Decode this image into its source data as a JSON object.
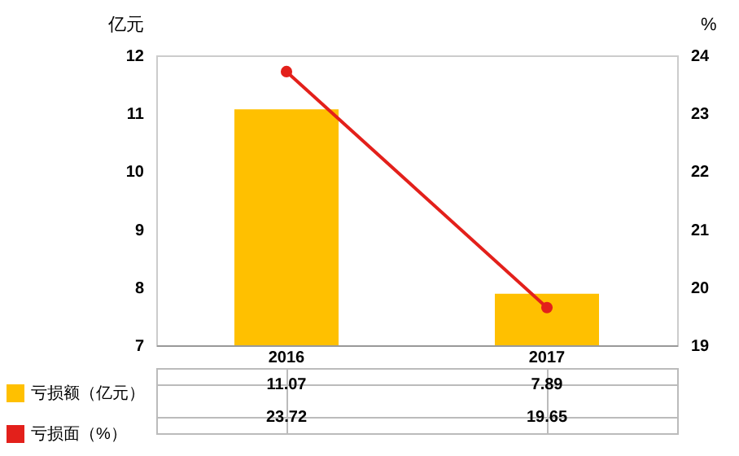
{
  "chart_data": {
    "type": "bar",
    "categories": [
      "2016",
      "2017"
    ],
    "ylabel": "亿元",
    "y2label": "%",
    "series": [
      {
        "name": "亏损额（亿元）",
        "color": "#ffc000",
        "values": [
          11.07,
          7.89
        ]
      },
      {
        "name": "亏损面（%）",
        "type": "line",
        "axis": "y2",
        "color": "#e3201b",
        "marker": "circle",
        "values": [
          23.72,
          19.65
        ]
      }
    ],
    "ylim": [
      7,
      12
    ],
    "yticks": [
      7,
      8,
      9,
      10,
      11,
      12
    ],
    "y2lim": [
      19,
      24
    ],
    "y2ticks": [
      19,
      20,
      21,
      22,
      23,
      24
    ],
    "data_labels": true,
    "legend": "bottom",
    "grid": false
  }
}
